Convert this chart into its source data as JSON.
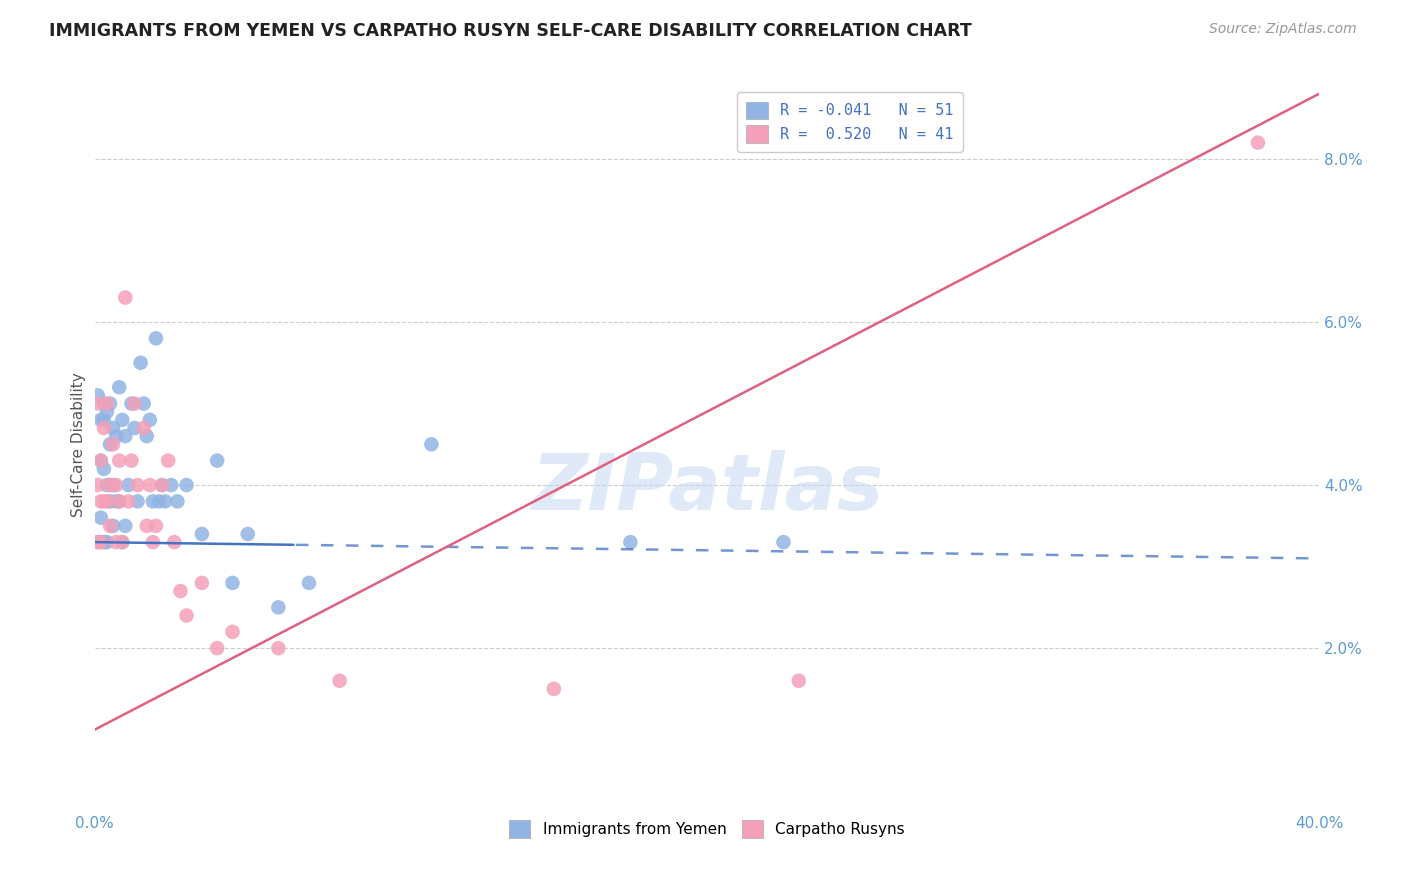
{
  "title": "IMMIGRANTS FROM YEMEN VS CARPATHO RUSYN SELF-CARE DISABILITY CORRELATION CHART",
  "source": "Source: ZipAtlas.com",
  "ylabel": "Self-Care Disability",
  "xlim": [
    0.0,
    0.4
  ],
  "ylim": [
    0.0,
    0.09
  ],
  "legend1_label": "R = -0.041   N = 51",
  "legend2_label": "R =  0.520   N = 41",
  "blue_color": "#92b4e3",
  "pink_color": "#f4a0b8",
  "trend_blue": "#4472c4",
  "trend_pink": "#e06080",
  "watermark": "ZIPatlas",
  "yemen_x": [
    0.001,
    0.001,
    0.002,
    0.002,
    0.002,
    0.003,
    0.003,
    0.003,
    0.003,
    0.004,
    0.004,
    0.004,
    0.005,
    0.005,
    0.005,
    0.006,
    0.006,
    0.006,
    0.007,
    0.007,
    0.008,
    0.008,
    0.009,
    0.009,
    0.01,
    0.01,
    0.011,
    0.012,
    0.013,
    0.014,
    0.015,
    0.016,
    0.017,
    0.018,
    0.019,
    0.02,
    0.021,
    0.022,
    0.023,
    0.025,
    0.027,
    0.03,
    0.035,
    0.04,
    0.045,
    0.05,
    0.06,
    0.07,
    0.11,
    0.175,
    0.225
  ],
  "yemen_y": [
    0.033,
    0.051,
    0.048,
    0.043,
    0.036,
    0.05,
    0.048,
    0.042,
    0.033,
    0.049,
    0.04,
    0.033,
    0.05,
    0.045,
    0.038,
    0.047,
    0.04,
    0.035,
    0.046,
    0.038,
    0.052,
    0.038,
    0.048,
    0.033,
    0.046,
    0.035,
    0.04,
    0.05,
    0.047,
    0.038,
    0.055,
    0.05,
    0.046,
    0.048,
    0.038,
    0.058,
    0.038,
    0.04,
    0.038,
    0.04,
    0.038,
    0.04,
    0.034,
    0.043,
    0.028,
    0.034,
    0.025,
    0.028,
    0.045,
    0.033,
    0.033
  ],
  "rusyn_x": [
    0.001,
    0.001,
    0.001,
    0.002,
    0.002,
    0.002,
    0.003,
    0.003,
    0.004,
    0.004,
    0.005,
    0.005,
    0.006,
    0.007,
    0.007,
    0.008,
    0.008,
    0.009,
    0.01,
    0.011,
    0.012,
    0.013,
    0.014,
    0.016,
    0.017,
    0.018,
    0.019,
    0.02,
    0.022,
    0.024,
    0.026,
    0.028,
    0.03,
    0.035,
    0.04,
    0.045,
    0.06,
    0.08,
    0.15,
    0.23,
    0.38
  ],
  "rusyn_y": [
    0.033,
    0.04,
    0.05,
    0.038,
    0.033,
    0.043,
    0.047,
    0.038,
    0.05,
    0.038,
    0.04,
    0.035,
    0.045,
    0.04,
    0.033,
    0.043,
    0.038,
    0.033,
    0.063,
    0.038,
    0.043,
    0.05,
    0.04,
    0.047,
    0.035,
    0.04,
    0.033,
    0.035,
    0.04,
    0.043,
    0.033,
    0.027,
    0.024,
    0.028,
    0.02,
    0.022,
    0.02,
    0.016,
    0.015,
    0.016,
    0.082
  ],
  "trend_blue_solid_end": 0.065,
  "trend_blue_x0": 0.0,
  "trend_blue_x1": 0.4,
  "trend_pink_x0": 0.0,
  "trend_pink_x1": 0.4
}
